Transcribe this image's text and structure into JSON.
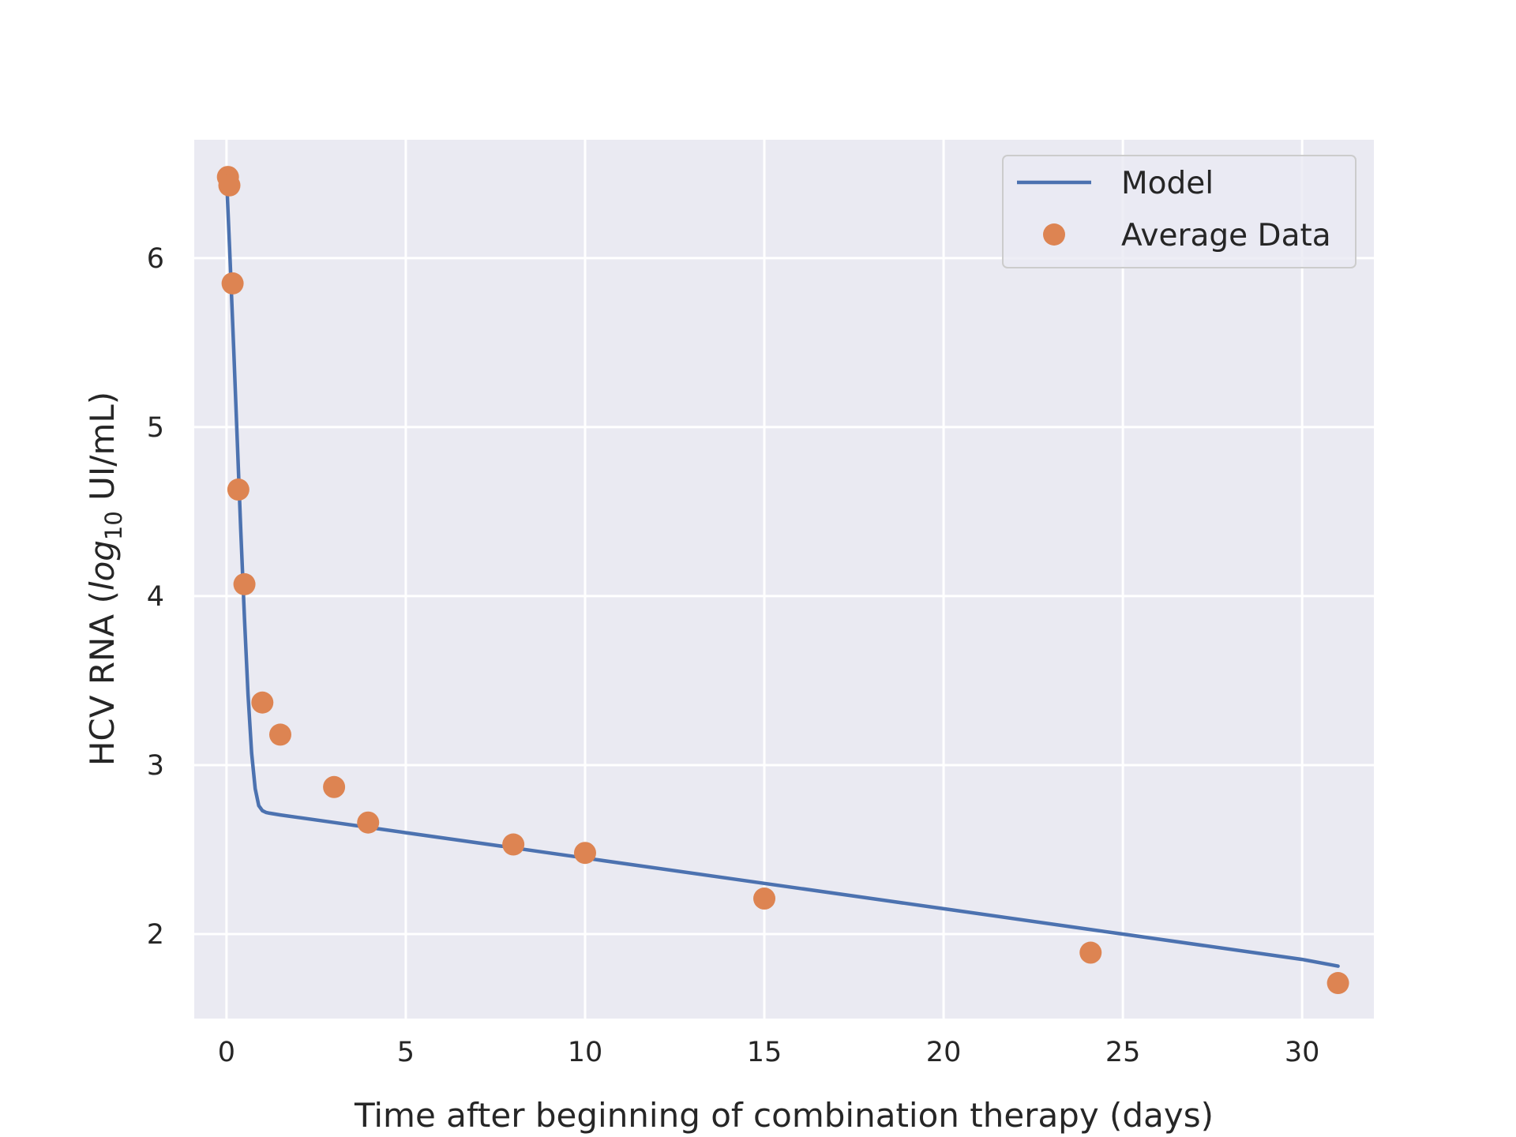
{
  "chart_data": {
    "type": "line",
    "xlabel": "Time after beginning of combination therapy (days)",
    "ylabel_prefix": "HCV RNA (",
    "ylabel_log": "log",
    "ylabel_sub": "10",
    "ylabel_suffix": " UI/mL)",
    "xlim": [
      -0.9,
      32
    ],
    "ylim": [
      1.5,
      6.7
    ],
    "xticks": [
      0,
      5,
      10,
      15,
      20,
      25,
      30
    ],
    "yticks": [
      2,
      3,
      4,
      5,
      6
    ],
    "grid": true,
    "legend_position": "top-right",
    "series": [
      {
        "name": "Model",
        "kind": "line",
        "color": "#4c72b0",
        "x": [
          0.0,
          0.1,
          0.2,
          0.3,
          0.4,
          0.5,
          0.6,
          0.7,
          0.8,
          0.9,
          1.0,
          1.1,
          1.2,
          1.5,
          2.0,
          3.0,
          4.0,
          5.0,
          8.0,
          10.0,
          15.0,
          20.0,
          24.0,
          25.0,
          30.0,
          31.0
        ],
        "y": [
          6.48,
          5.99,
          5.46,
          4.92,
          4.38,
          3.87,
          3.42,
          3.07,
          2.86,
          2.76,
          2.73,
          2.72,
          2.715,
          2.705,
          2.69,
          2.66,
          2.63,
          2.6,
          2.51,
          2.45,
          2.3,
          2.15,
          2.03,
          2.0,
          1.85,
          1.81
        ]
      },
      {
        "name": "Average Data",
        "kind": "scatter",
        "color": "#dd8452",
        "x": [
          0.04,
          0.08,
          0.17,
          0.33,
          0.5,
          1.0,
          1.5,
          3.0,
          3.95,
          8.0,
          10.0,
          15.0,
          24.1,
          31.0
        ],
        "y": [
          6.48,
          6.43,
          5.85,
          4.63,
          4.07,
          3.37,
          3.18,
          2.87,
          2.66,
          2.53,
          2.48,
          2.21,
          1.89,
          1.71
        ]
      }
    ]
  }
}
